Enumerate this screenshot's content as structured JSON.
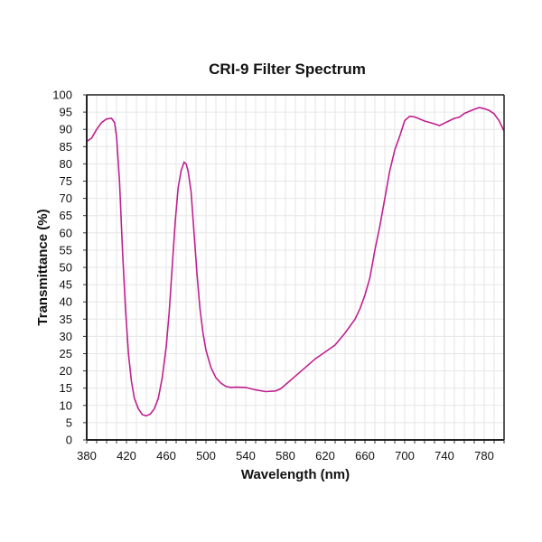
{
  "chart_data": {
    "type": "line",
    "title": "CRI-9 Filter Spectrum",
    "xlabel": "Wavelength (nm)",
    "ylabel": "Transmittance (%)",
    "xlim": [
      380,
      800
    ],
    "ylim": [
      0,
      100
    ],
    "xticks": [
      380,
      420,
      460,
      500,
      540,
      580,
      620,
      660,
      700,
      740,
      780
    ],
    "yticks": [
      0,
      5,
      10,
      15,
      20,
      25,
      30,
      35,
      40,
      45,
      50,
      55,
      60,
      65,
      70,
      75,
      80,
      85,
      90,
      95,
      100
    ],
    "grid": true,
    "line_color": "#c0208f",
    "series": [
      {
        "x": [
          380,
          385,
          390,
          395,
          400,
          405,
          408,
          410,
          413,
          416,
          419,
          422,
          425,
          428,
          432,
          436,
          440,
          444,
          448,
          452,
          456,
          460,
          463,
          466,
          469,
          472,
          475,
          478,
          480,
          482,
          485,
          488,
          491,
          494,
          497,
          500,
          505,
          510,
          515,
          520,
          525,
          530,
          540,
          550,
          560,
          570,
          575,
          580,
          590,
          600,
          610,
          620,
          630,
          640,
          650,
          655,
          660,
          665,
          670,
          675,
          680,
          685,
          690,
          695,
          700,
          705,
          710,
          720,
          730,
          735,
          740,
          745,
          750,
          755,
          760,
          765,
          770,
          775,
          780,
          785,
          790,
          795,
          800
        ],
        "y": [
          86.5,
          87.5,
          90,
          92,
          93,
          93.2,
          92,
          88,
          75,
          55,
          38,
          25,
          17,
          12,
          9,
          7.3,
          7,
          7.5,
          9,
          12,
          18,
          27,
          37,
          50,
          63,
          73,
          78,
          80.5,
          80,
          78,
          72,
          60,
          48,
          38,
          31,
          26,
          21,
          18,
          16.5,
          15.5,
          15.2,
          15.3,
          15.2,
          14.5,
          14,
          14.2,
          14.8,
          16,
          18.5,
          21,
          23.5,
          25.5,
          27.5,
          31,
          35,
          38,
          42,
          47,
          55,
          62,
          70,
          78,
          84,
          88,
          92.5,
          93.8,
          93.6,
          92.4,
          91.6,
          91.1,
          91.8,
          92.5,
          93.2,
          93.5,
          94.6,
          95.2,
          95.8,
          96.3,
          96,
          95.5,
          94.5,
          92.5,
          89.5
        ]
      }
    ]
  }
}
